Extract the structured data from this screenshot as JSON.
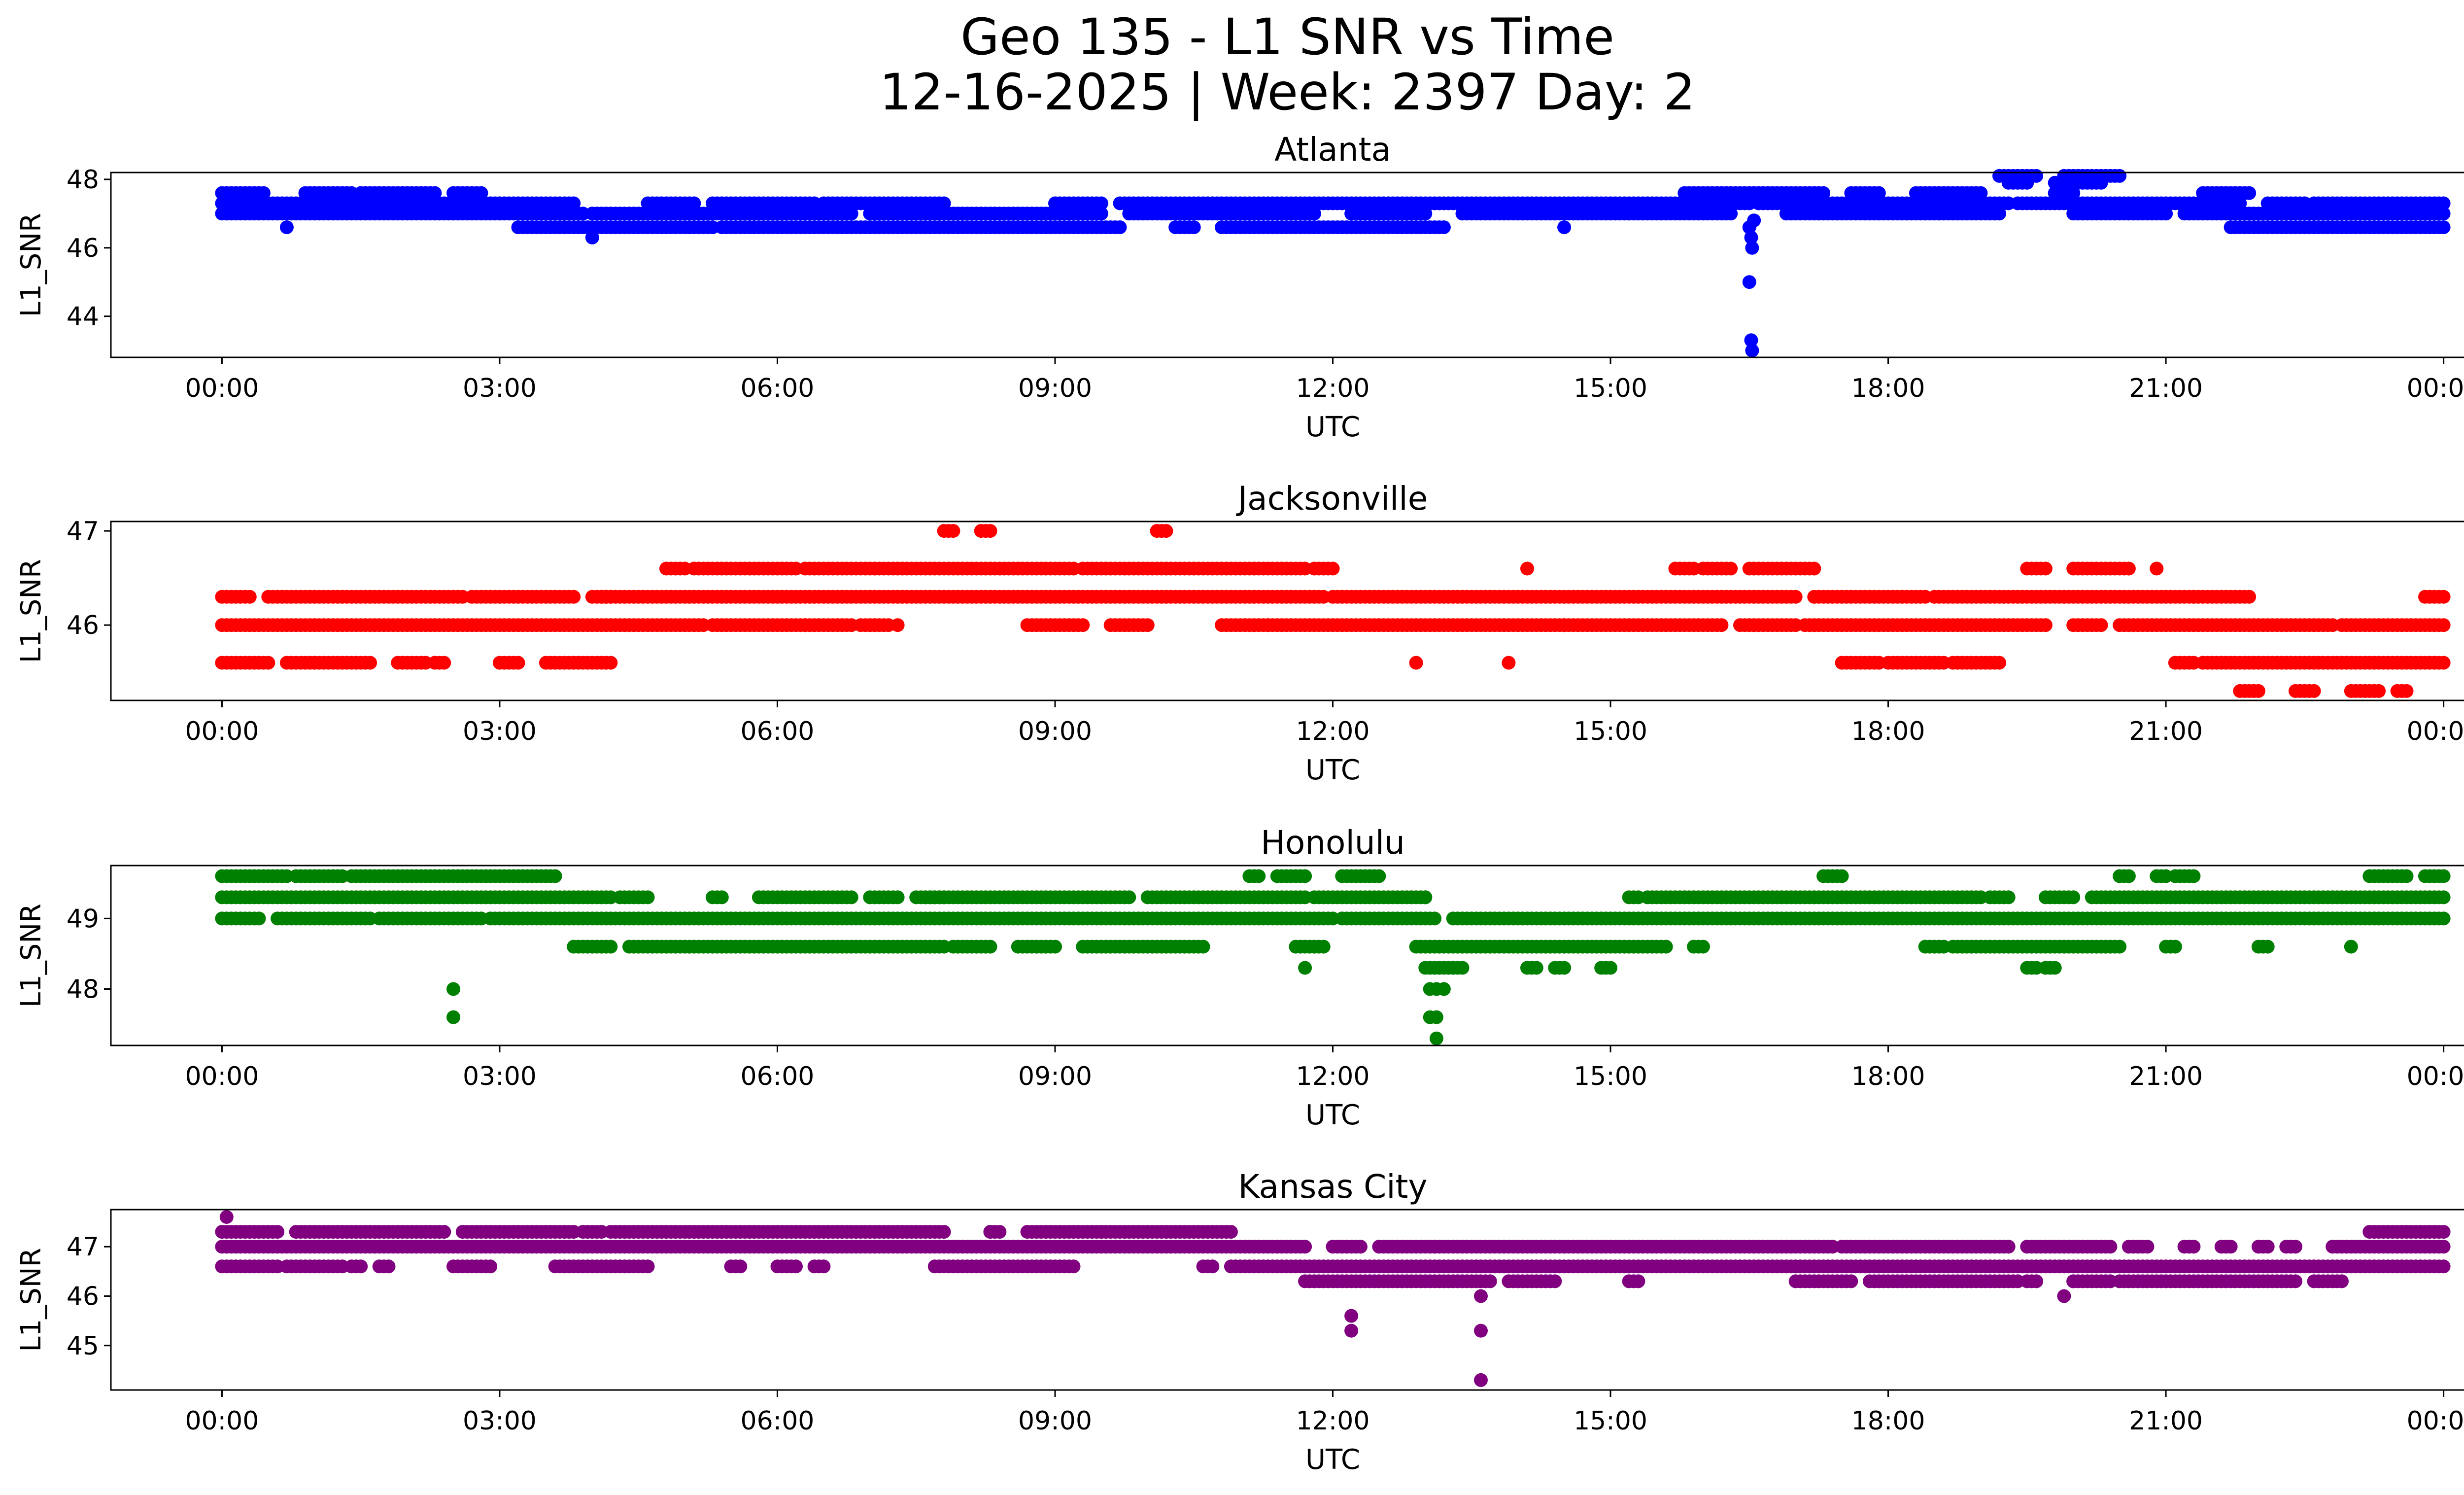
{
  "figure": {
    "title_line1": "Geo 135 - L1 SNR vs Time",
    "title_line2": "12-16-2025 | Week: 2397 Day: 2"
  },
  "chart_data": [
    {
      "type": "scatter",
      "title": "Atlanta",
      "xlabel": "UTC",
      "ylabel": "L1_SNR",
      "color": "#0000ff",
      "x_ticks": [
        "00:00",
        "03:00",
        "06:00",
        "09:00",
        "12:00",
        "15:00",
        "18:00",
        "21:00",
        "00:00"
      ],
      "x_range_hours": [
        -1.2,
        25.2
      ],
      "ylim": [
        42.8,
        48.2
      ],
      "y_ticks": [
        44,
        46,
        48
      ],
      "levels": [
        {
          "value": 47.6,
          "ranges": [
            [
              0.0,
              0.45
            ],
            [
              0.9,
              1.4
            ],
            [
              1.5,
              2.3
            ],
            [
              2.5,
              2.8
            ],
            [
              15.8,
              17.3
            ],
            [
              17.6,
              17.9
            ],
            [
              18.3,
              19.0
            ],
            [
              19.8,
              20.0
            ],
            [
              21.4,
              21.9
            ]
          ]
        },
        {
          "value": 47.3,
          "ranges": [
            [
              0.0,
              3.8
            ],
            [
              4.6,
              5.1
            ],
            [
              5.3,
              6.4
            ],
            [
              6.5,
              7.8
            ],
            [
              9.0,
              9.5
            ],
            [
              9.7,
              16.5
            ],
            [
              16.6,
              19.3
            ],
            [
              19.4,
              21.8
            ],
            [
              22.1,
              22.5
            ],
            [
              22.6,
              24.0
            ]
          ]
        },
        {
          "value": 47.0,
          "ranges": [
            [
              0.0,
              3.9
            ],
            [
              4.0,
              6.8
            ],
            [
              7.0,
              9.5
            ],
            [
              9.8,
              11.8
            ],
            [
              12.2,
              13.0
            ],
            [
              13.4,
              16.3
            ],
            [
              16.9,
              19.2
            ],
            [
              20.0,
              21.0
            ],
            [
              21.2,
              24.0
            ]
          ]
        },
        {
          "value": 46.6,
          "ranges": [
            [
              3.2,
              5.3
            ],
            [
              5.4,
              9.7
            ],
            [
              10.3,
              10.5
            ],
            [
              10.8,
              13.2
            ],
            [
              21.7,
              24.0
            ]
          ]
        },
        {
          "value": 47.9,
          "ranges": [
            [
              19.3,
              19.5
            ],
            [
              19.8,
              20.3
            ]
          ]
        },
        {
          "value": 48.1,
          "ranges": [
            [
              19.2,
              19.6
            ],
            [
              19.9,
              20.5
            ]
          ]
        }
      ],
      "points": [
        [
          0.7,
          46.6
        ],
        [
          4.0,
          46.3
        ],
        [
          14.5,
          46.6
        ],
        [
          21.6,
          47.6
        ],
        [
          16.5,
          46.6
        ],
        [
          16.52,
          46.3
        ],
        [
          16.53,
          46.0
        ],
        [
          16.55,
          46.8
        ],
        [
          16.5,
          45.0
        ],
        [
          16.52,
          43.3
        ],
        [
          16.53,
          43.0
        ]
      ]
    },
    {
      "type": "scatter",
      "title": "Jacksonville",
      "xlabel": "UTC",
      "ylabel": "L1_SNR",
      "color": "#ff0000",
      "x_ticks": [
        "00:00",
        "03:00",
        "06:00",
        "09:00",
        "12:00",
        "15:00",
        "18:00",
        "21:00",
        "00:00"
      ],
      "x_range_hours": [
        -1.2,
        25.2
      ],
      "ylim": [
        45.2,
        47.1
      ],
      "y_ticks": [
        46,
        47
      ],
      "levels": [
        {
          "value": 46.6,
          "ranges": [
            [
              4.8,
              5.0
            ],
            [
              5.1,
              6.2
            ],
            [
              6.3,
              9.2
            ],
            [
              9.3,
              11.7
            ],
            [
              11.8,
              12.0
            ],
            [
              15.7,
              15.9
            ],
            [
              16.0,
              16.3
            ],
            [
              16.5,
              17.2
            ],
            [
              19.5,
              19.7
            ],
            [
              20.0,
              20.6
            ]
          ]
        },
        {
          "value": 46.3,
          "ranges": [
            [
              0.0,
              0.3
            ],
            [
              0.5,
              2.6
            ],
            [
              2.7,
              3.8
            ],
            [
              4.0,
              4.2
            ],
            [
              4.1,
              11.9
            ],
            [
              12.0,
              17.0
            ],
            [
              17.2,
              18.4
            ],
            [
              18.5,
              21.3
            ],
            [
              21.3,
              21.9
            ],
            [
              23.8,
              24.0
            ]
          ]
        },
        {
          "value": 46.0,
          "ranges": [
            [
              0.0,
              5.2
            ],
            [
              5.3,
              6.3
            ],
            [
              6.3,
              6.8
            ],
            [
              6.9,
              7.2
            ],
            [
              8.7,
              9.3
            ],
            [
              9.6,
              10.0
            ],
            [
              10.8,
              11.3
            ],
            [
              11.3,
              14.5
            ],
            [
              14.5,
              16.2
            ],
            [
              16.4,
              17.0
            ],
            [
              17.1,
              19.7
            ],
            [
              20.0,
              20.3
            ],
            [
              20.5,
              22.8
            ],
            [
              22.9,
              24.0
            ]
          ]
        },
        {
          "value": 45.6,
          "ranges": [
            [
              0.0,
              0.5
            ],
            [
              0.7,
              1.6
            ],
            [
              1.9,
              2.2
            ],
            [
              2.3,
              2.4
            ],
            [
              3.0,
              3.2
            ],
            [
              3.5,
              4.2
            ],
            [
              17.5,
              17.9
            ],
            [
              18.0,
              18.6
            ],
            [
              18.7,
              19.2
            ],
            [
              21.1,
              21.3
            ],
            [
              21.4,
              24.0
            ]
          ]
        },
        {
          "value": 45.3,
          "ranges": [
            [
              21.8,
              22.0
            ],
            [
              22.4,
              22.6
            ],
            [
              23.0,
              23.3
            ],
            [
              23.5,
              23.6
            ]
          ]
        },
        {
          "value": 47.0,
          "ranges": [
            [
              7.8,
              7.9
            ],
            [
              8.2,
              8.3
            ],
            [
              10.1,
              10.2
            ]
          ]
        }
      ],
      "points": [
        [
          12.9,
          45.6
        ],
        [
          13.9,
          45.6
        ],
        [
          14.1,
          46.6
        ],
        [
          20.9,
          46.6
        ],
        [
          7.3,
          46.0
        ]
      ]
    },
    {
      "type": "scatter",
      "title": "Honolulu",
      "xlabel": "UTC",
      "ylabel": "L1_SNR",
      "color": "#008000",
      "x_ticks": [
        "00:00",
        "03:00",
        "06:00",
        "09:00",
        "12:00",
        "15:00",
        "18:00",
        "21:00",
        "00:00"
      ],
      "x_range_hours": [
        -1.2,
        25.2
      ],
      "ylim": [
        47.2,
        49.75
      ],
      "y_ticks": [
        48,
        49
      ],
      "levels": [
        {
          "value": 49.6,
          "ranges": [
            [
              0.0,
              0.7
            ],
            [
              0.8,
              1.3
            ],
            [
              1.4,
              3.6
            ],
            [
              11.1,
              11.2
            ],
            [
              11.4,
              11.7
            ],
            [
              12.1,
              12.5
            ],
            [
              17.3,
              17.5
            ],
            [
              20.5,
              20.6
            ],
            [
              20.9,
              21.0
            ],
            [
              21.1,
              21.3
            ],
            [
              23.8,
              24.0
            ],
            [
              23.2,
              23.6
            ]
          ]
        },
        {
          "value": 49.3,
          "ranges": [
            [
              0.0,
              4.2
            ],
            [
              4.3,
              4.6
            ],
            [
              5.3,
              5.4
            ],
            [
              5.8,
              6.8
            ],
            [
              7.0,
              7.3
            ],
            [
              7.5,
              7.8
            ],
            [
              7.6,
              9.8
            ],
            [
              10.0,
              11.7
            ],
            [
              11.8,
              13.0
            ],
            [
              13.0,
              13.0
            ],
            [
              15.2,
              15.3
            ],
            [
              15.4,
              19.0
            ],
            [
              19.1,
              19.3
            ],
            [
              19.7,
              20.0
            ],
            [
              20.2,
              24.0
            ]
          ]
        },
        {
          "value": 49.0,
          "ranges": [
            [
              0.0,
              0.4
            ],
            [
              0.6,
              1.6
            ],
            [
              1.7,
              2.8
            ],
            [
              2.9,
              12.0
            ],
            [
              12.1,
              13.1
            ],
            [
              13.3,
              24.0
            ]
          ]
        },
        {
          "value": 48.6,
          "ranges": [
            [
              3.8,
              4.2
            ],
            [
              4.4,
              7.8
            ],
            [
              7.9,
              8.3
            ],
            [
              8.6,
              9.0
            ],
            [
              9.3,
              10.6
            ],
            [
              11.6,
              11.9
            ],
            [
              12.9,
              15.6
            ],
            [
              15.9,
              16.0
            ],
            [
              18.4,
              18.6
            ],
            [
              18.7,
              20.5
            ],
            [
              21.0,
              21.1
            ],
            [
              22.0,
              22.1
            ],
            [
              23.0,
              23.0
            ]
          ]
        },
        {
          "value": 48.3,
          "ranges": [
            [
              13.0,
              13.4
            ],
            [
              14.1,
              14.2
            ],
            [
              14.4,
              14.5
            ],
            [
              14.9,
              15.0
            ],
            [
              19.5,
              19.6
            ],
            [
              19.7,
              19.8
            ],
            [
              11.7,
              11.7
            ]
          ]
        }
      ],
      "points": [
        [
          2.5,
          48.0
        ],
        [
          2.5,
          47.6
        ],
        [
          13.05,
          48.0
        ],
        [
          13.12,
          48.0
        ],
        [
          13.2,
          48.0
        ],
        [
          13.05,
          47.6
        ],
        [
          13.12,
          47.6
        ],
        [
          13.12,
          47.3
        ]
      ]
    },
    {
      "type": "scatter",
      "title": "Kansas City",
      "xlabel": "UTC",
      "ylabel": "L1_SNR",
      "color": "#800080",
      "x_ticks": [
        "00:00",
        "03:00",
        "06:00",
        "09:00",
        "12:00",
        "15:00",
        "18:00",
        "21:00",
        "00:00"
      ],
      "x_range_hours": [
        -1.2,
        25.2
      ],
      "ylim": [
        44.1,
        47.75
      ],
      "y_ticks": [
        45,
        46,
        47
      ],
      "levels": [
        {
          "value": 47.3,
          "ranges": [
            [
              0.0,
              0.6
            ],
            [
              0.8,
              2.4
            ],
            [
              2.6,
              3.8
            ],
            [
              3.9,
              4.1
            ],
            [
              4.2,
              7.8
            ],
            [
              8.3,
              8.4
            ],
            [
              8.7,
              9.5
            ],
            [
              9.5,
              10.9
            ],
            [
              23.2,
              24.0
            ]
          ]
        },
        {
          "value": 47.0,
          "ranges": [
            [
              0.0,
              11.7
            ],
            [
              12.0,
              12.3
            ],
            [
              12.5,
              13.1
            ],
            [
              13.1,
              17.4
            ],
            [
              17.5,
              19.3
            ],
            [
              19.5,
              20.4
            ],
            [
              20.6,
              20.8
            ],
            [
              21.2,
              21.3
            ],
            [
              21.6,
              21.7
            ],
            [
              22.0,
              22.1
            ],
            [
              22.3,
              22.4
            ],
            [
              22.8,
              24.0
            ]
          ]
        },
        {
          "value": 46.6,
          "ranges": [
            [
              0.0,
              0.6
            ],
            [
              0.7,
              1.3
            ],
            [
              1.4,
              1.5
            ],
            [
              1.7,
              1.8
            ],
            [
              2.5,
              2.9
            ],
            [
              3.6,
              4.6
            ],
            [
              5.5,
              5.6
            ],
            [
              6.0,
              6.2
            ],
            [
              6.4,
              6.5
            ],
            [
              7.7,
              9.2
            ],
            [
              10.6,
              10.7
            ],
            [
              10.9,
              24.0
            ]
          ]
        },
        {
          "value": 46.3,
          "ranges": [
            [
              11.7,
              13.7
            ],
            [
              13.9,
              14.4
            ],
            [
              15.2,
              15.3
            ],
            [
              17.0,
              17.6
            ],
            [
              17.8,
              19.4
            ],
            [
              19.5,
              19.6
            ],
            [
              20.0,
              20.4
            ],
            [
              20.5,
              22.4
            ],
            [
              22.6,
              22.9
            ]
          ]
        }
      ],
      "points": [
        [
          0.05,
          47.6
        ],
        [
          8.3,
          47.3
        ],
        [
          12.2,
          45.6
        ],
        [
          12.2,
          45.3
        ],
        [
          13.6,
          46.0
        ],
        [
          13.6,
          45.3
        ],
        [
          13.6,
          44.3
        ],
        [
          19.9,
          46.0
        ],
        [
          20.0,
          46.3
        ]
      ]
    }
  ]
}
